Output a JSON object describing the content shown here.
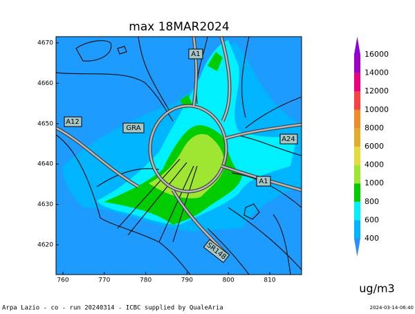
{
  "title": "max 18MAR2024",
  "x_axis": {
    "ticks": [
      "760",
      "770",
      "780",
      "790",
      "800",
      "810"
    ]
  },
  "y_axis": {
    "ticks": [
      "4670",
      "4660",
      "4650",
      "4640",
      "4630",
      "4620"
    ]
  },
  "road_labels": [
    "A1",
    "A12",
    "GRA",
    "A24",
    "A1",
    "SR148"
  ],
  "colorbar": {
    "levels": [
      "400",
      "600",
      "800",
      "1000",
      "4000",
      "6000",
      "8000",
      "10000",
      "12000",
      "14000",
      "16000"
    ],
    "colors": [
      "#2f8cff",
      "#00b4ff",
      "#00f0ff",
      "#00cc00",
      "#9ee632",
      "#e3dc3c",
      "#e3ac2a",
      "#f08a2a",
      "#fa4040",
      "#f0007a",
      "#a000c8",
      "#8a00dc"
    ]
  },
  "unit": "ug/m3",
  "footer": {
    "left": "Arpa Lazio - co - run 20240314 - ICBC supplied by QualeAria",
    "right": "2024-03-14-06:40"
  }
}
